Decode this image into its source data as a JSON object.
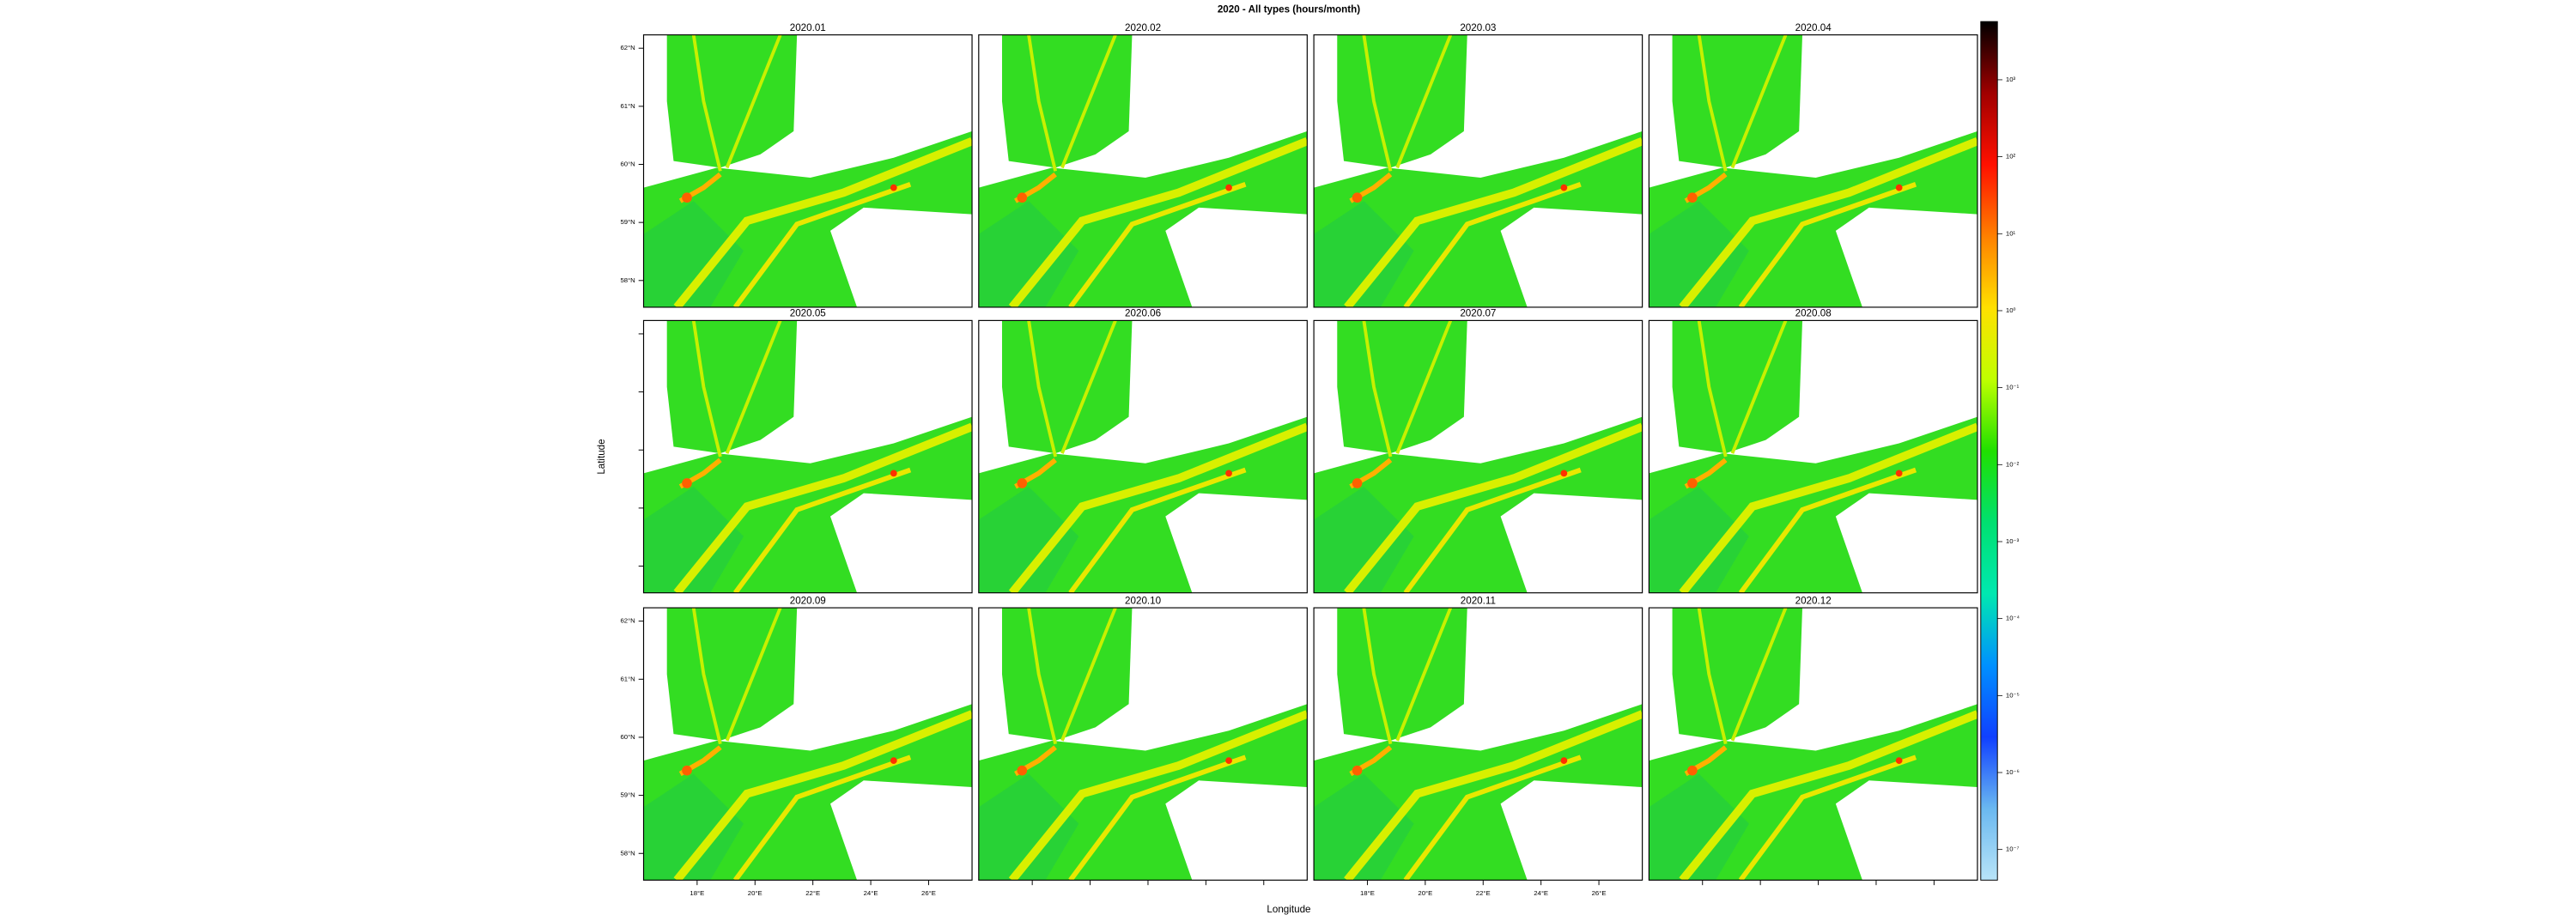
{
  "title": "2020 - All types (hours/month)",
  "x_label": "Longitude",
  "y_label": "Latitude",
  "panels": [
    "2020.01",
    "2020.02",
    "2020.03",
    "2020.04",
    "2020.05",
    "2020.06",
    "2020.07",
    "2020.08",
    "2020.09",
    "2020.10",
    "2020.11",
    "2020.12"
  ],
  "xlim": [
    16.15,
    27.5
  ],
  "ylim": [
    57.54,
    62.23
  ],
  "xticks": [
    {
      "value": 18,
      "label": "18°E"
    },
    {
      "value": 20,
      "label": "20°E"
    },
    {
      "value": 22,
      "label": "22°E"
    },
    {
      "value": 24,
      "label": "24°E"
    },
    {
      "value": 26,
      "label": "26°E"
    }
  ],
  "yticks": [
    {
      "value": 58,
      "label": "58°N"
    },
    {
      "value": 59,
      "label": "59°N"
    },
    {
      "value": 60,
      "label": "60°N"
    },
    {
      "value": 61,
      "label": "61°N"
    },
    {
      "value": 62,
      "label": "62°N"
    }
  ],
  "colorbar": {
    "log": true,
    "lim": [
      4e-08,
      5700
    ],
    "colors": [
      "#b8e4f8",
      "#6ab8f0",
      "#1040ff",
      "#0090ff",
      "#00e8b0",
      "#00e070",
      "#20e000",
      "#c0ff00",
      "#ffe000",
      "#ff8000",
      "#ff1000",
      "#a00000",
      "#000000"
    ],
    "ticks": [
      {
        "value": 1000,
        "label": "10³"
      },
      {
        "value": 100,
        "label": "10²"
      },
      {
        "value": 10,
        "label": "10¹"
      },
      {
        "value": 1,
        "label": "10⁰"
      },
      {
        "value": 0.1,
        "label": "10⁻¹"
      },
      {
        "value": 0.01,
        "label": "10⁻²"
      },
      {
        "value": 0.001,
        "label": "10⁻³"
      },
      {
        "value": 0.0001,
        "label": "10⁻⁴"
      },
      {
        "value": 1e-05,
        "label": "10⁻⁵"
      },
      {
        "value": 1e-06,
        "label": "10⁻⁶"
      },
      {
        "value": 1e-07,
        "label": "10⁻⁷"
      }
    ]
  }
}
